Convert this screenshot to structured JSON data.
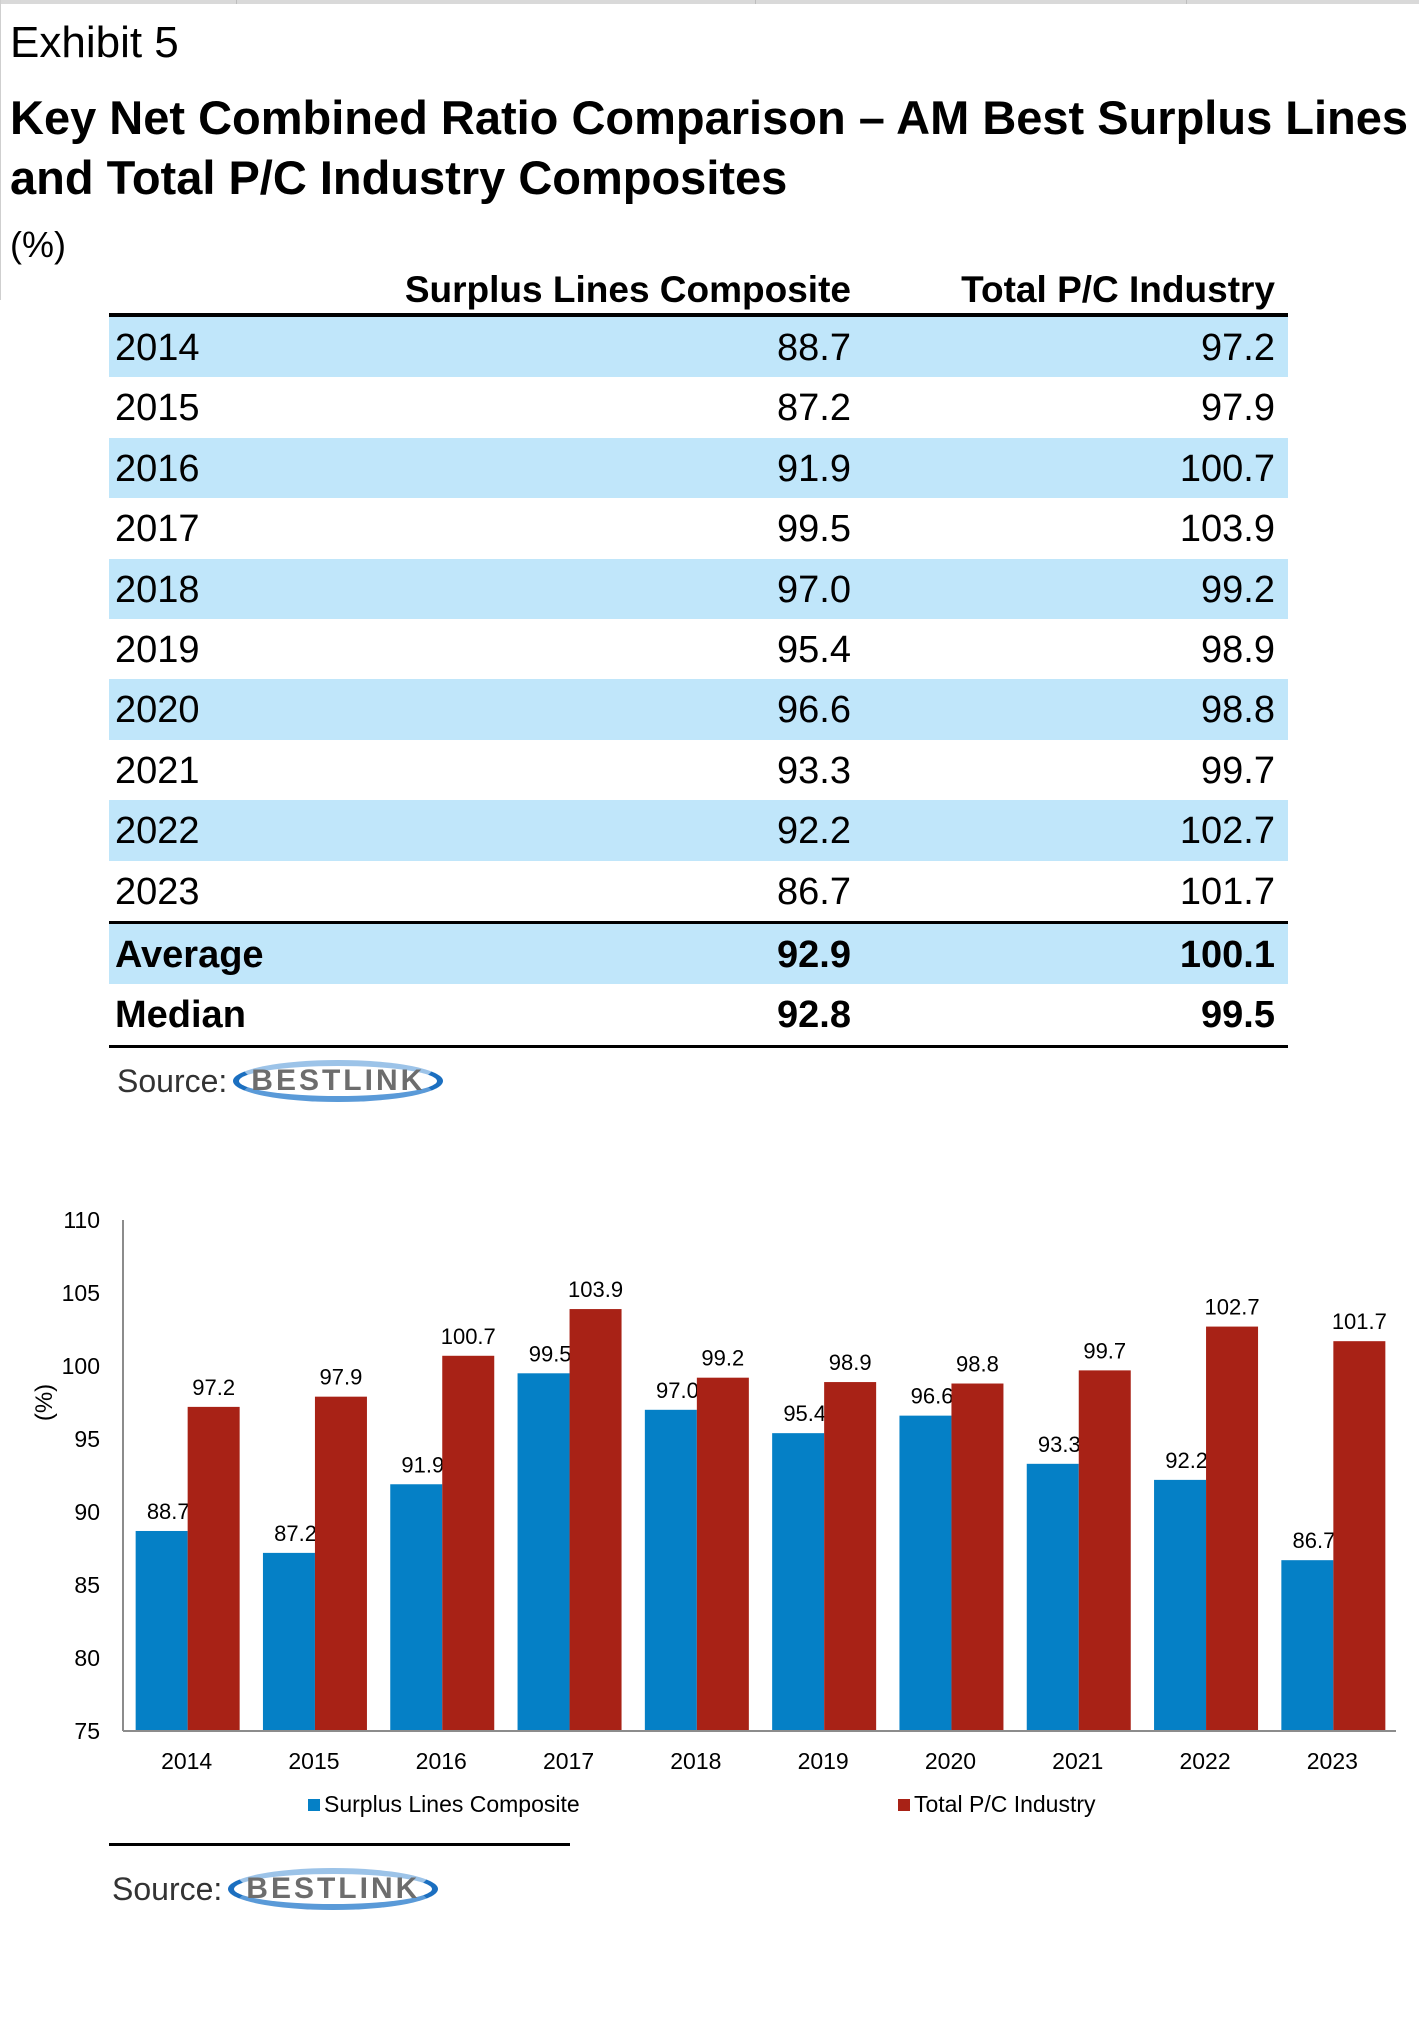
{
  "exhibit_label": "Exhibit 5",
  "title": "Key Net Combined Ratio Comparison – AM Best Surplus Lines and Total P/C Industry Composites",
  "unit": "(%)",
  "table": {
    "headers": [
      "",
      "Surplus Lines Composite",
      "Total P/C Industry"
    ],
    "rows": [
      {
        "label": "2014",
        "surplus": "88.7",
        "total": "97.2"
      },
      {
        "label": "2015",
        "surplus": "87.2",
        "total": "97.9"
      },
      {
        "label": "2016",
        "surplus": "91.9",
        "total": "100.7"
      },
      {
        "label": "2017",
        "surplus": "99.5",
        "total": "103.9"
      },
      {
        "label": "2018",
        "surplus": "97.0",
        "total": "99.2"
      },
      {
        "label": "2019",
        "surplus": "95.4",
        "total": "98.9"
      },
      {
        "label": "2020",
        "surplus": "96.6",
        "total": "98.8"
      },
      {
        "label": "2021",
        "surplus": "93.3",
        "total": "99.7"
      },
      {
        "label": "2022",
        "surplus": "92.2",
        "total": "102.7"
      },
      {
        "label": "2023",
        "surplus": "86.7",
        "total": "101.7"
      }
    ],
    "summary": [
      {
        "label": "Average",
        "surplus": "92.9",
        "total": "100.1"
      },
      {
        "label": "Median",
        "surplus": "92.8",
        "total": "99.5"
      }
    ]
  },
  "source": {
    "label": "Source:",
    "logo_text": "BESTLINK"
  },
  "colors": {
    "surplus": "#0580c6",
    "total": "#a82216",
    "row_shade": "#c0e6fa"
  },
  "chart_data": {
    "type": "bar",
    "title": "",
    "xlabel": "",
    "ylabel": "(%)",
    "ylim": [
      75,
      110
    ],
    "yticks": [
      75,
      80,
      85,
      90,
      95,
      100,
      105,
      110
    ],
    "grid": false,
    "legend_position": "bottom",
    "categories": [
      "2014",
      "2015",
      "2016",
      "2017",
      "2018",
      "2019",
      "2020",
      "2021",
      "2022",
      "2023"
    ],
    "series": [
      {
        "name": "Surplus Lines Composite",
        "color": "#0580c6",
        "values": [
          88.7,
          87.2,
          91.9,
          99.5,
          97.0,
          95.4,
          96.6,
          93.3,
          92.2,
          86.7
        ],
        "labels": [
          "88.7",
          "87.2",
          "91.9",
          "99.5",
          "97.0",
          "95.4",
          "96.6",
          "93.3",
          "92.2",
          "86.7"
        ]
      },
      {
        "name": "Total P/C Industry",
        "color": "#a82216",
        "values": [
          97.2,
          97.9,
          100.7,
          103.9,
          99.2,
          98.9,
          98.8,
          99.7,
          102.7,
          101.7
        ],
        "labels": [
          "97.2",
          "97.9",
          "100.7",
          "103.9",
          "99.2",
          "98.9",
          "98.8",
          "99.7",
          "102.7",
          "101.7"
        ]
      }
    ]
  }
}
